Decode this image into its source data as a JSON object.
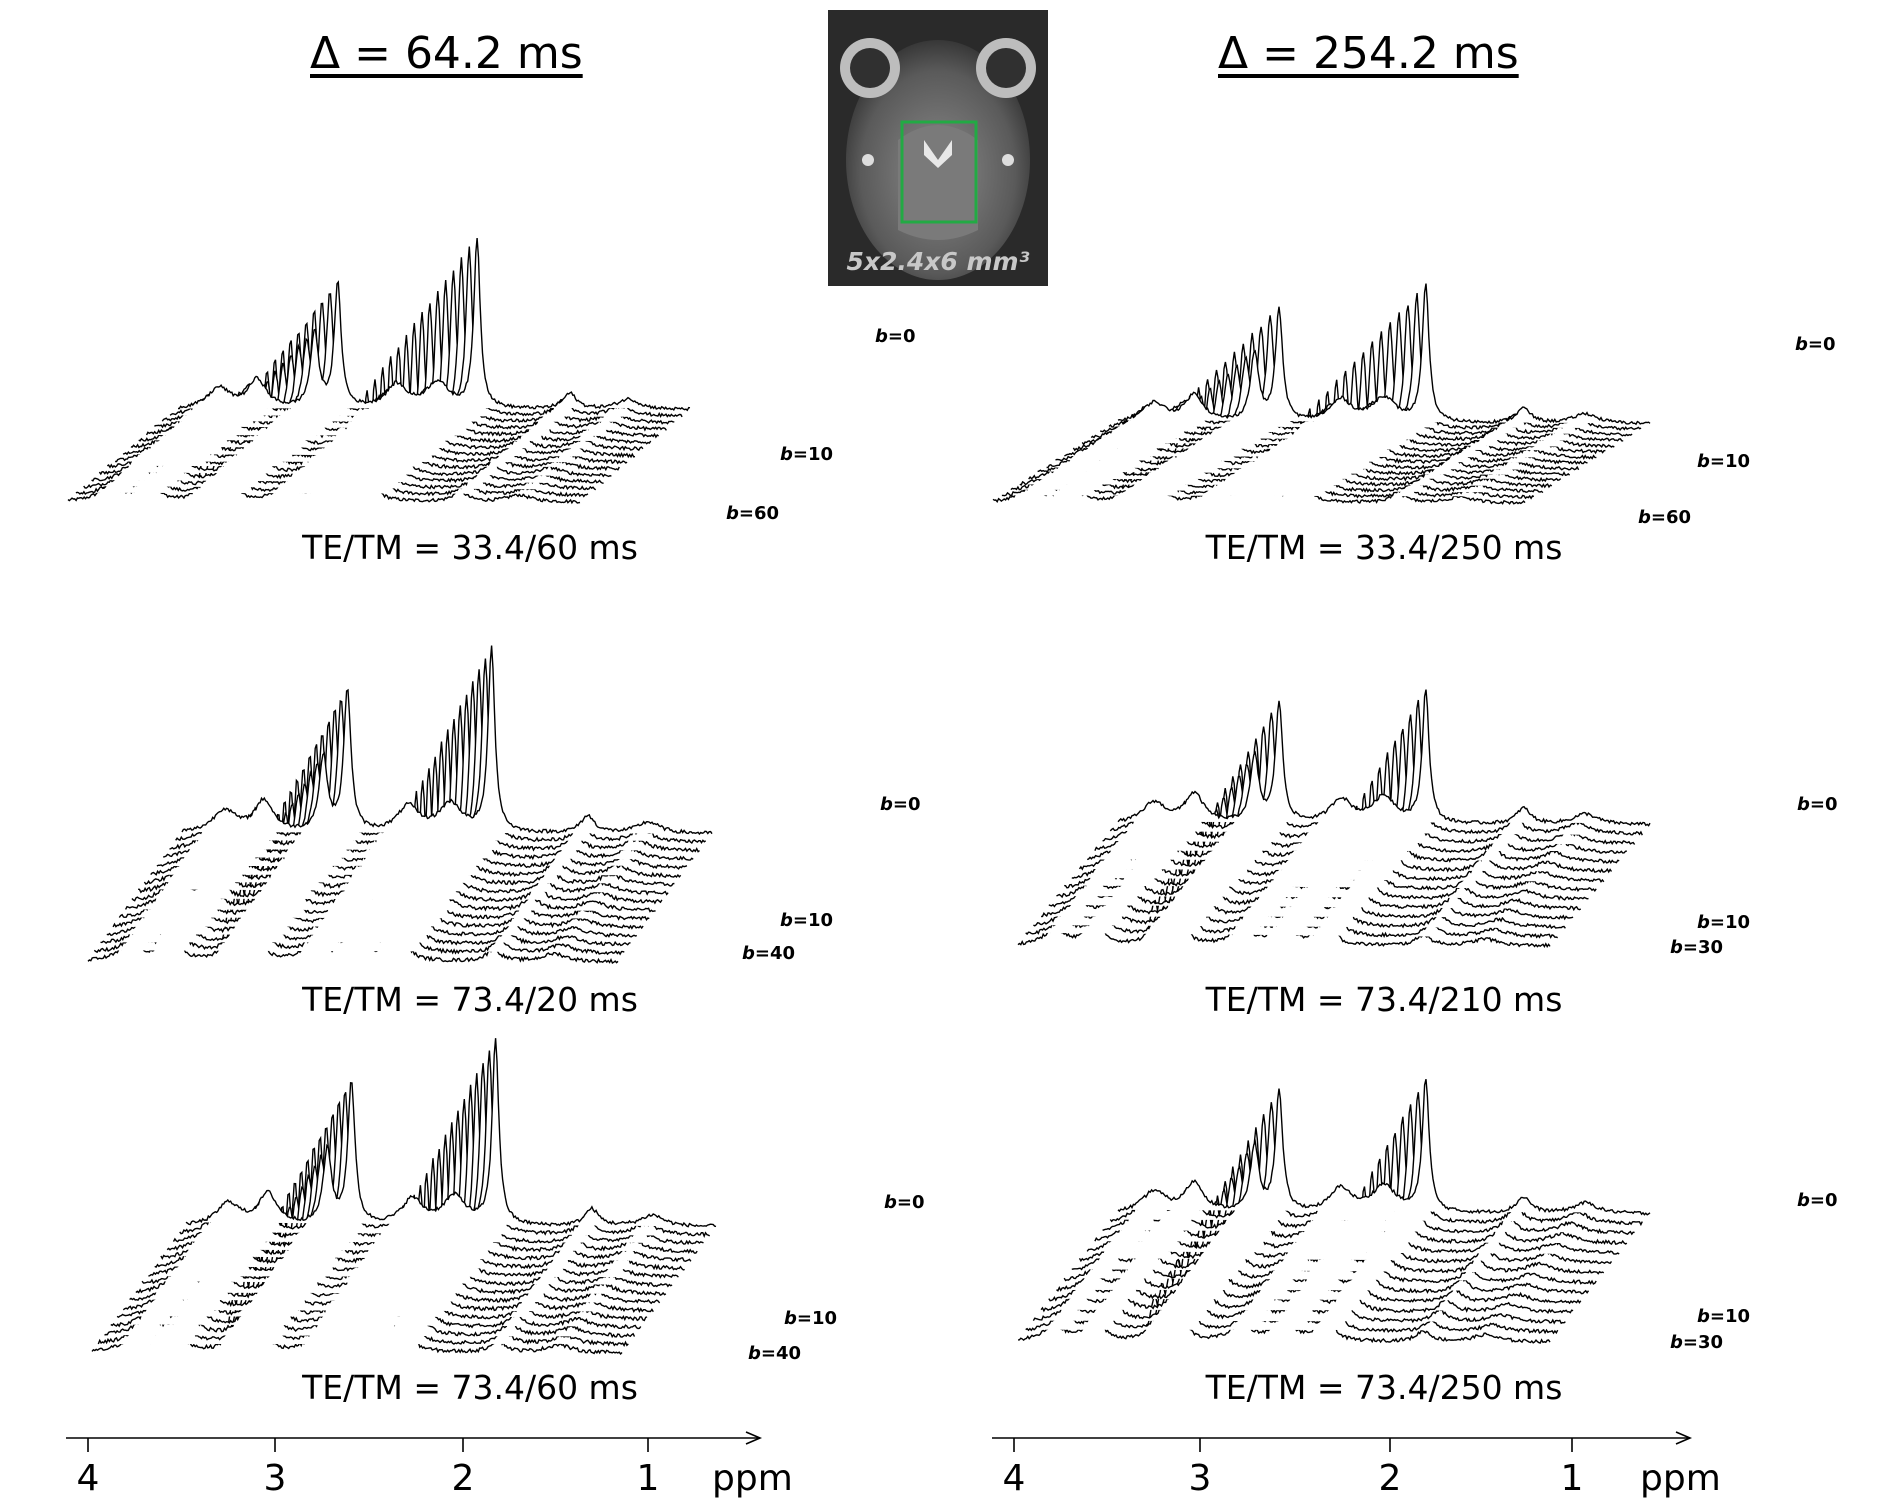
{
  "headers": {
    "left": "Δ = 64.2 ms",
    "right": "Δ = 254.2 ms"
  },
  "inset": {
    "caption": "5x2.4x6 mm³",
    "roi_color": "#22aa44"
  },
  "chart_data": [
    {
      "type": "line",
      "title": "TE/TM = 33.4/60 ms",
      "column": "Δ = 64.2 ms",
      "x_unit": "ppm",
      "xlim": [
        4.2,
        0.45
      ],
      "b_labels": [
        "b=0",
        "b=10",
        "b=60"
      ],
      "n_traces": 15,
      "peaks_ppm": [
        3.2,
        3.03,
        2.01
      ],
      "peak_heights_b0": [
        1.05,
        0.95,
        1.3
      ],
      "attenuation": 0.35
    },
    {
      "type": "line",
      "title": "TE/TM = 73.4/20 ms",
      "column": "Δ = 64.2 ms",
      "x_unit": "ppm",
      "xlim": [
        4.2,
        0.45
      ],
      "b_labels": [
        "b=0",
        "b=10",
        "b=40"
      ],
      "n_traces": 16,
      "peaks_ppm": [
        3.2,
        3.03,
        2.01
      ],
      "peak_heights_b0": [
        0.95,
        1.0,
        1.3
      ],
      "attenuation": 0.3
    },
    {
      "type": "line",
      "title": "TE/TM = 73.4/60 ms",
      "column": "Δ = 64.2 ms",
      "x_unit": "ppm",
      "xlim": [
        4.2,
        0.45
      ],
      "b_labels": [
        "b=0",
        "b=10",
        "b=40"
      ],
      "n_traces": 16,
      "peaks_ppm": [
        3.2,
        3.03,
        2.01
      ],
      "peak_heights_b0": [
        0.95,
        1.0,
        1.3
      ],
      "attenuation": 0.3
    },
    {
      "type": "line",
      "title": "TE/TM = 33.4/250 ms",
      "column": "Δ = 254.2 ms",
      "x_unit": "ppm",
      "xlim": [
        4.15,
        0.45
      ],
      "b_labels": [
        "b=0",
        "b=10",
        "b=60"
      ],
      "n_traces": 15,
      "peaks_ppm": [
        3.2,
        3.03,
        2.01
      ],
      "peak_heights_b0": [
        1.0,
        0.9,
        1.1
      ],
      "attenuation": 0.4
    },
    {
      "type": "line",
      "title": "TE/TM = 73.4/210 ms",
      "column": "Δ = 254.2 ms",
      "x_unit": "ppm",
      "xlim": [
        4.15,
        0.45
      ],
      "b_labels": [
        "b=0",
        "b=10",
        "b=30"
      ],
      "n_traces": 14,
      "peaks_ppm": [
        3.2,
        3.03,
        2.01
      ],
      "peak_heights_b0": [
        0.9,
        0.9,
        1.0
      ],
      "attenuation": 0.35
    },
    {
      "type": "line",
      "title": "TE/TM = 73.4/250 ms",
      "column": "Δ = 254.2 ms",
      "x_unit": "ppm",
      "xlim": [
        4.15,
        0.45
      ],
      "b_labels": [
        "b=0",
        "b=10",
        "b=30"
      ],
      "n_traces": 14,
      "peaks_ppm": [
        3.2,
        3.03,
        2.01
      ],
      "peak_heights_b0": [
        0.9,
        0.9,
        1.0
      ],
      "attenuation": 0.35
    }
  ],
  "axes": [
    {
      "ticks": [
        4,
        3,
        2,
        1
      ],
      "tick_labels": [
        "4",
        "3",
        "2",
        "1"
      ],
      "unit": "ppm"
    },
    {
      "ticks": [
        4,
        3,
        2,
        1
      ],
      "tick_labels": [
        "4",
        "3",
        "2",
        "1"
      ],
      "unit": "ppm"
    }
  ]
}
